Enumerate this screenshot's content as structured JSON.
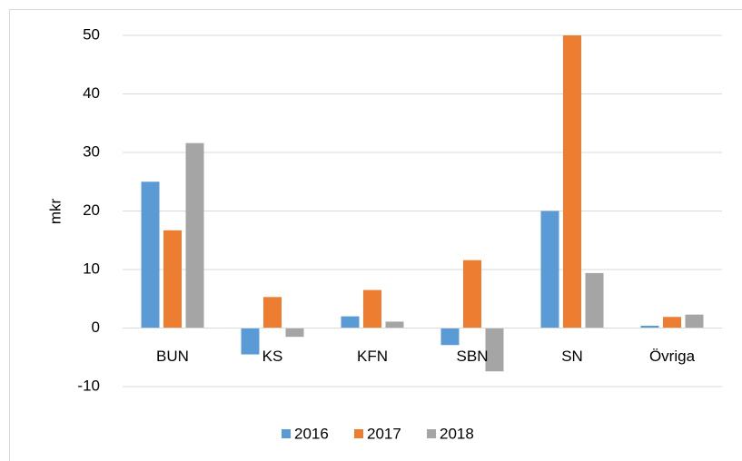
{
  "chart_data": {
    "type": "bar",
    "y_label": "mkr",
    "categories": [
      "BUN",
      "KS",
      "KFN",
      "SBN",
      "SN",
      "Övriga"
    ],
    "series": [
      {
        "name": "2016",
        "color": "#5b9bd5",
        "values": [
          25,
          -4.5,
          2,
          -2.9,
          20,
          0.4
        ]
      },
      {
        "name": "2017",
        "color": "#ed7d31",
        "values": [
          16.7,
          5.3,
          6.5,
          11.6,
          50,
          1.9
        ]
      },
      {
        "name": "2018",
        "color": "#a5a5a5",
        "values": [
          31.6,
          -1.5,
          1.1,
          -7.4,
          9.4,
          2.3
        ]
      }
    ],
    "ylim": [
      -10,
      50
    ],
    "yticks": [
      -10,
      0,
      10,
      20,
      30,
      40,
      50
    ],
    "grid": true,
    "legend": "bottom"
  }
}
